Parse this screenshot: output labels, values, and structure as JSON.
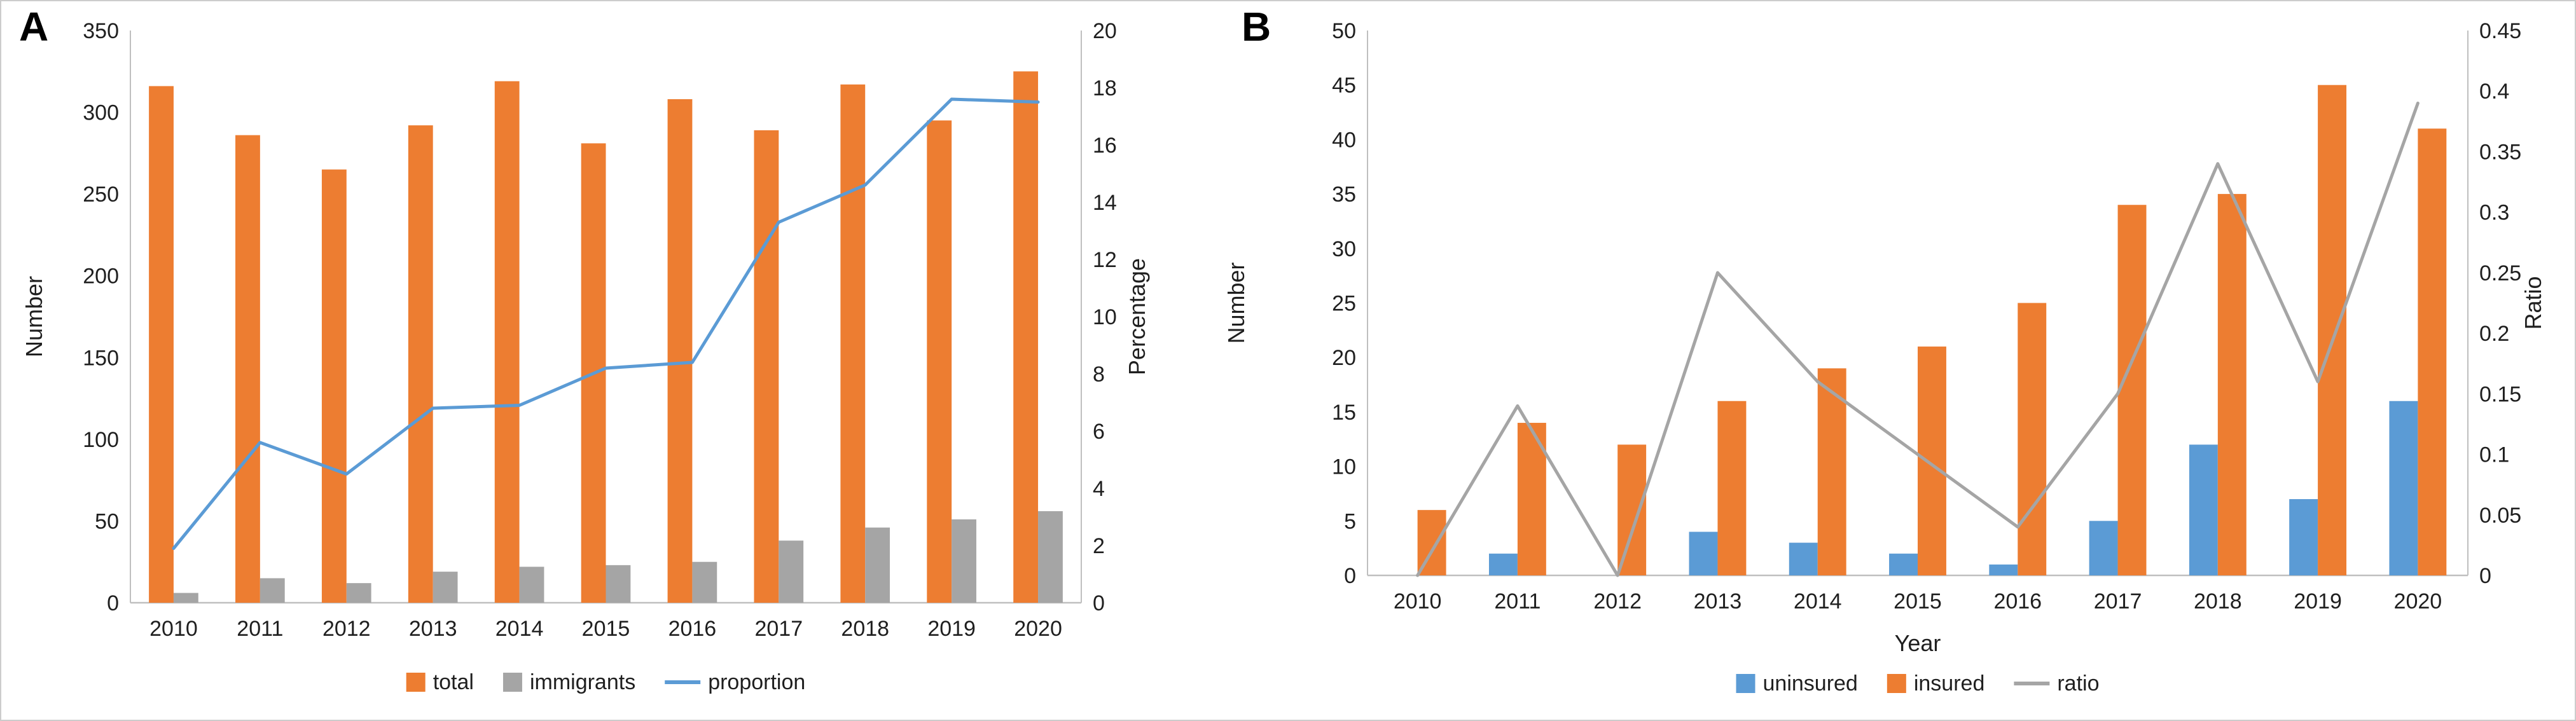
{
  "figure": {
    "background": "#ffffff",
    "panels": [
      {
        "label": "A"
      },
      {
        "label": "B"
      }
    ]
  },
  "chart_data": [
    {
      "panel": "A",
      "type": "bar",
      "categories": [
        "2010",
        "2011",
        "2012",
        "2013",
        "2014",
        "2015",
        "2016",
        "2017",
        "2018",
        "2019",
        "2020"
      ],
      "series": [
        {
          "name": "total",
          "kind": "bar",
          "axis": "left",
          "color": "#ED7D31",
          "values": [
            316,
            286,
            265,
            292,
            319,
            281,
            308,
            289,
            317,
            295,
            325
          ]
        },
        {
          "name": "immigrants",
          "kind": "bar",
          "axis": "left",
          "color": "#A5A5A5",
          "values": [
            6,
            15,
            12,
            19,
            22,
            23,
            25,
            38,
            46,
            51,
            56
          ]
        },
        {
          "name": "proportion",
          "kind": "line",
          "axis": "right",
          "color": "#5B9BD5",
          "values": [
            1.9,
            5.6,
            4.5,
            6.8,
            6.9,
            8.2,
            8.4,
            13.3,
            14.6,
            17.6,
            17.5
          ]
        }
      ],
      "title": "",
      "xlabel": "",
      "ylabel": "Number",
      "y2label": "Percentage",
      "ylim": [
        0,
        350
      ],
      "ytick": 50,
      "y2lim": [
        0,
        20
      ],
      "y2tick": 2,
      "grid": false,
      "legend_position": "bottom"
    },
    {
      "panel": "B",
      "type": "bar",
      "categories": [
        "2010",
        "2011",
        "2012",
        "2013",
        "2014",
        "2015",
        "2016",
        "2017",
        "2018",
        "2019",
        "2020"
      ],
      "series": [
        {
          "name": "uninsured",
          "kind": "bar",
          "axis": "left",
          "color": "#5B9BD5",
          "values": [
            0,
            2,
            0,
            4,
            3,
            2,
            1,
            5,
            12,
            7,
            16
          ]
        },
        {
          "name": "insured",
          "kind": "bar",
          "axis": "left",
          "color": "#ED7D31",
          "values": [
            6,
            14,
            12,
            16,
            19,
            21,
            25,
            34,
            35,
            45,
            41
          ]
        },
        {
          "name": "ratio",
          "kind": "line",
          "axis": "right",
          "color": "#A5A5A5",
          "values": [
            0,
            0.14,
            0,
            0.25,
            0.16,
            0.1,
            0.04,
            0.15,
            0.34,
            0.16,
            0.39
          ]
        }
      ],
      "title": "",
      "xlabel": "Year",
      "ylabel": "Number",
      "y2label": "Ratio",
      "ylim": [
        0,
        50
      ],
      "ytick": 5,
      "y2lim": [
        0,
        0.45
      ],
      "y2tick": 0.05,
      "grid": false,
      "legend_position": "bottom"
    }
  ]
}
